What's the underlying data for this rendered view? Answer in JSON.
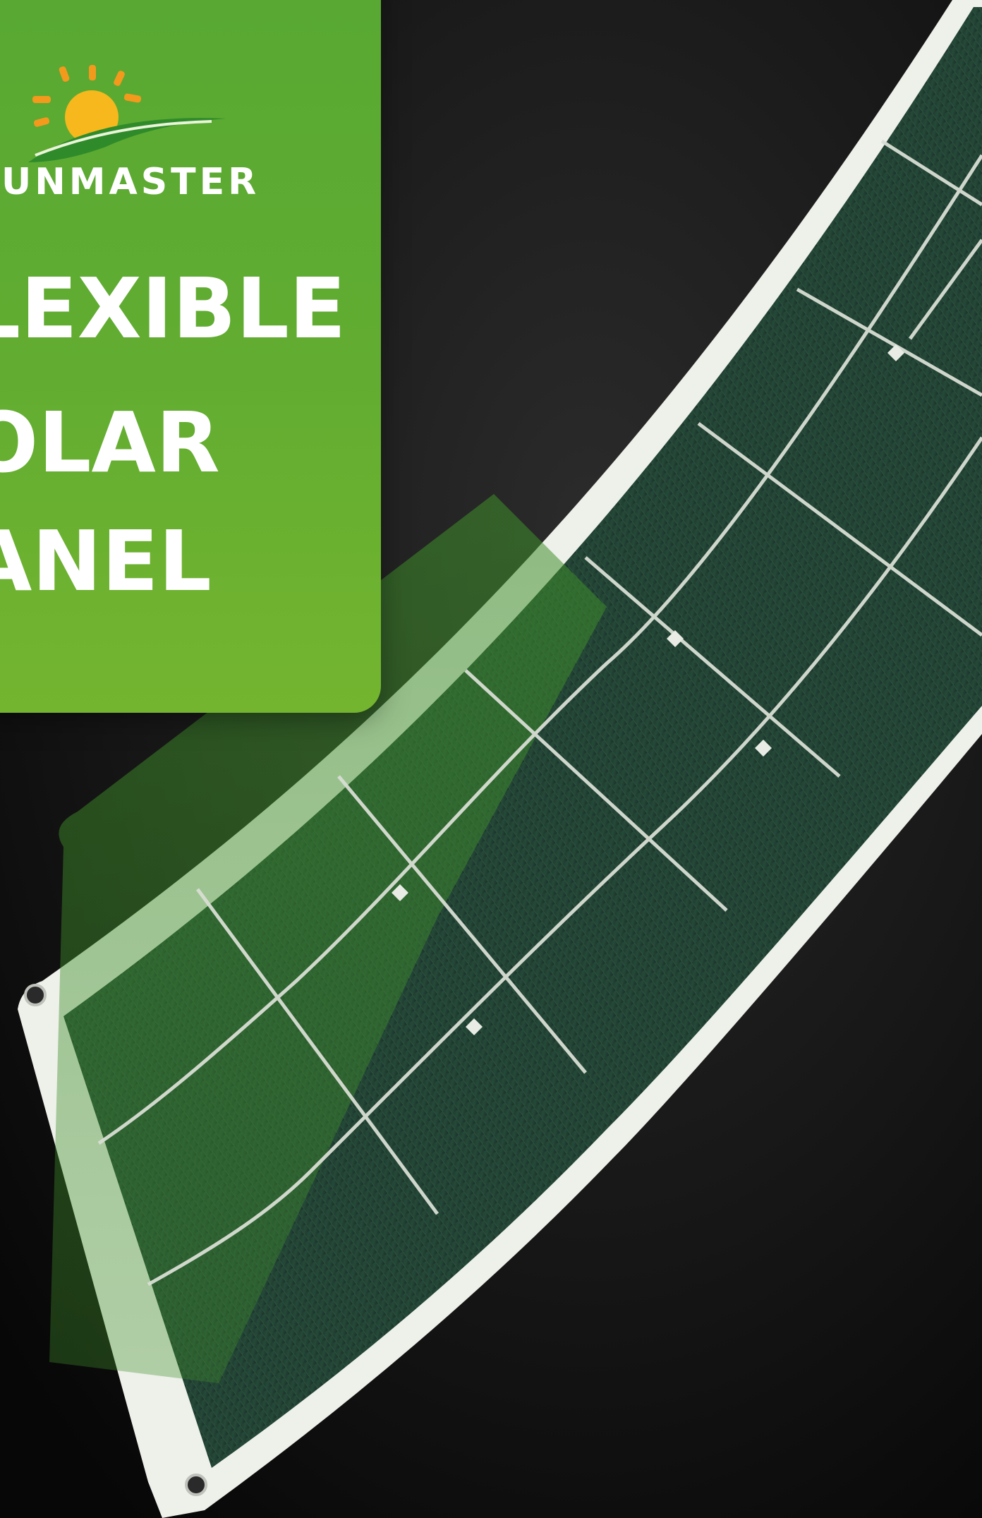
{
  "brand": {
    "name": "UNMASTER",
    "colors": {
      "panel_green": "#62ad31",
      "sun": "#f6b81c",
      "rays": "#f39a1d",
      "leaf": "#2f8b2a"
    }
  },
  "headline": {
    "line1": "LEXIBLE",
    "line2": "OLAR",
    "line3": "ANEL"
  },
  "scene": {
    "background": "#0d0d0d",
    "product": "curved-solar-panel"
  }
}
